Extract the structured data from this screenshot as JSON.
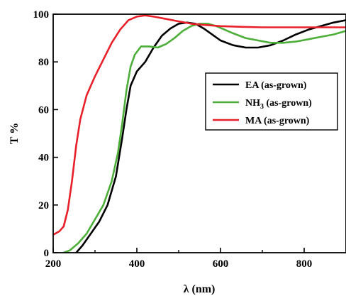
{
  "chart_data": {
    "type": "line",
    "title": "",
    "xlabel": "λ (nm)",
    "ylabel": "T %",
    "xlim": [
      200,
      900
    ],
    "ylim": [
      0,
      100
    ],
    "x_ticks": [
      200,
      400,
      600,
      800
    ],
    "x_minor_ticks": [
      300,
      500,
      700
    ],
    "y_ticks": [
      0,
      20,
      40,
      60,
      80,
      100
    ],
    "grid": false,
    "legend_position": "right",
    "series": [
      {
        "name": "EA (as-grown)",
        "legend_label": "EA (as-grown)",
        "legend_sub": "",
        "legend_suffix": "",
        "color": "#000000",
        "points": [
          [
            255,
            0
          ],
          [
            270,
            3
          ],
          [
            290,
            8
          ],
          [
            310,
            13
          ],
          [
            330,
            20
          ],
          [
            350,
            32
          ],
          [
            365,
            48
          ],
          [
            375,
            60
          ],
          [
            385,
            70
          ],
          [
            400,
            76
          ],
          [
            420,
            80
          ],
          [
            440,
            86
          ],
          [
            460,
            91
          ],
          [
            480,
            94
          ],
          [
            500,
            96
          ],
          [
            520,
            96.5
          ],
          [
            540,
            96
          ],
          [
            560,
            94
          ],
          [
            580,
            91.5
          ],
          [
            600,
            89
          ],
          [
            630,
            87
          ],
          [
            660,
            86
          ],
          [
            690,
            86
          ],
          [
            720,
            87
          ],
          [
            750,
            89
          ],
          [
            780,
            91.5
          ],
          [
            810,
            93.5
          ],
          [
            840,
            95
          ],
          [
            870,
            96.5
          ],
          [
            900,
            97.5
          ]
        ]
      },
      {
        "name": "NH3 (as-grown)",
        "legend_label": "NH",
        "legend_sub": "3",
        "legend_suffix": " (as-grown)",
        "color": "#4daf3a",
        "points": [
          [
            225,
            0
          ],
          [
            240,
            1
          ],
          [
            260,
            4
          ],
          [
            280,
            8
          ],
          [
            300,
            14
          ],
          [
            320,
            20
          ],
          [
            340,
            30
          ],
          [
            355,
            42
          ],
          [
            365,
            54
          ],
          [
            375,
            68
          ],
          [
            385,
            78
          ],
          [
            395,
            83
          ],
          [
            410,
            86.5
          ],
          [
            430,
            86.5
          ],
          [
            450,
            86
          ],
          [
            470,
            87.5
          ],
          [
            490,
            90
          ],
          [
            510,
            93
          ],
          [
            530,
            95
          ],
          [
            550,
            96
          ],
          [
            570,
            96
          ],
          [
            590,
            95
          ],
          [
            610,
            93.5
          ],
          [
            630,
            92
          ],
          [
            660,
            90
          ],
          [
            690,
            89
          ],
          [
            720,
            88
          ],
          [
            750,
            88
          ],
          [
            780,
            88.5
          ],
          [
            810,
            89.5
          ],
          [
            840,
            90.5
          ],
          [
            870,
            91.5
          ],
          [
            900,
            93
          ]
        ]
      },
      {
        "name": "MA (as-grown)",
        "legend_label": "MA (as-grown)",
        "legend_sub": "",
        "legend_suffix": "",
        "color": "#e8202a",
        "points": [
          [
            200,
            7.5
          ],
          [
            215,
            9
          ],
          [
            225,
            11
          ],
          [
            235,
            18
          ],
          [
            245,
            30
          ],
          [
            255,
            45
          ],
          [
            265,
            56
          ],
          [
            280,
            66
          ],
          [
            300,
            74
          ],
          [
            320,
            81
          ],
          [
            340,
            88
          ],
          [
            360,
            93.5
          ],
          [
            380,
            97.5
          ],
          [
            400,
            99
          ],
          [
            420,
            99.5
          ],
          [
            440,
            99
          ],
          [
            470,
            98
          ],
          [
            500,
            97
          ],
          [
            530,
            96
          ],
          [
            560,
            95.5
          ],
          [
            600,
            95
          ],
          [
            650,
            94.7
          ],
          [
            700,
            94.5
          ],
          [
            750,
            94.5
          ],
          [
            800,
            94.5
          ],
          [
            850,
            94.5
          ],
          [
            900,
            94.5
          ]
        ]
      }
    ]
  }
}
